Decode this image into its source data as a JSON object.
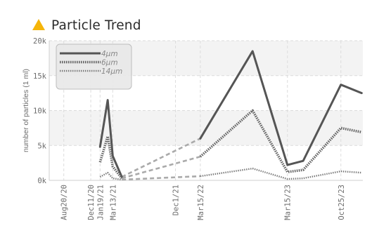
{
  "header": {
    "title": "Particle Trend",
    "icon": "warning-triangle-icon",
    "icon_color": "#f5b50a"
  },
  "chart_data": {
    "type": "line",
    "title": "Particle Trend",
    "ylabel": "number of particles (1 ml)",
    "xlabel": "",
    "ylim": [
      0,
      20000
    ],
    "yticks": [
      0,
      5000,
      10000,
      15000,
      20000
    ],
    "ytick_labels": [
      "0k",
      "5k",
      "10k",
      "15k",
      "20k"
    ],
    "x_range": [
      "2020-06-20",
      "2024-01-25"
    ],
    "xticks": [
      "2020-08-20",
      "2020-12-11",
      "2021-01-19",
      "2021-03-13",
      "2021-12-01",
      "2022-03-15",
      "2023-03-15",
      "2023-10-25"
    ],
    "xtick_labels": [
      "Aug20/20",
      "Dec11/20",
      "Jan19/21",
      "Mar13/21",
      "Dec1/21",
      "Mar15/22",
      "Mar15/23",
      "Oct25/23"
    ],
    "grid": true,
    "legend_position": "top-left",
    "series": [
      {
        "name": "4μm",
        "color": "#555555",
        "style": "solid",
        "points": [
          {
            "x": "2021-01-19",
            "y": 4800
          },
          {
            "x": "2021-02-20",
            "y": 11500
          },
          {
            "x": "2021-03-13",
            "y": 3500
          },
          {
            "x": "2021-04-20",
            "y": 500
          },
          {
            "x": "2022-03-15",
            "y": 6000
          },
          {
            "x": "2022-10-20",
            "y": 18500
          },
          {
            "x": "2023-03-15",
            "y": 2200
          },
          {
            "x": "2023-05-20",
            "y": 2800
          },
          {
            "x": "2023-10-25",
            "y": 13700
          },
          {
            "x": "2024-01-20",
            "y": 12500
          }
        ]
      },
      {
        "name": "6μm",
        "color": "#666666",
        "style": "dotted",
        "points": [
          {
            "x": "2021-01-19",
            "y": 2600
          },
          {
            "x": "2021-02-20",
            "y": 6300
          },
          {
            "x": "2021-03-13",
            "y": 2000
          },
          {
            "x": "2021-04-20",
            "y": 300
          },
          {
            "x": "2022-03-15",
            "y": 3400
          },
          {
            "x": "2022-10-20",
            "y": 10000
          },
          {
            "x": "2023-03-15",
            "y": 1200
          },
          {
            "x": "2023-05-20",
            "y": 1500
          },
          {
            "x": "2023-10-25",
            "y": 7500
          },
          {
            "x": "2024-01-20",
            "y": 6900
          }
        ]
      },
      {
        "name": "14μm",
        "color": "#777777",
        "style": "fine-dotted",
        "points": [
          {
            "x": "2021-01-19",
            "y": 500
          },
          {
            "x": "2021-02-20",
            "y": 1100
          },
          {
            "x": "2021-03-13",
            "y": 300
          },
          {
            "x": "2021-04-20",
            "y": 100
          },
          {
            "x": "2022-03-15",
            "y": 600
          },
          {
            "x": "2022-10-20",
            "y": 1700
          },
          {
            "x": "2023-03-15",
            "y": 200
          },
          {
            "x": "2023-05-20",
            "y": 300
          },
          {
            "x": "2023-10-25",
            "y": 1300
          },
          {
            "x": "2024-01-20",
            "y": 1100
          }
        ]
      }
    ],
    "gap_after_index": 3,
    "gap_color": "#aaaaaa"
  }
}
